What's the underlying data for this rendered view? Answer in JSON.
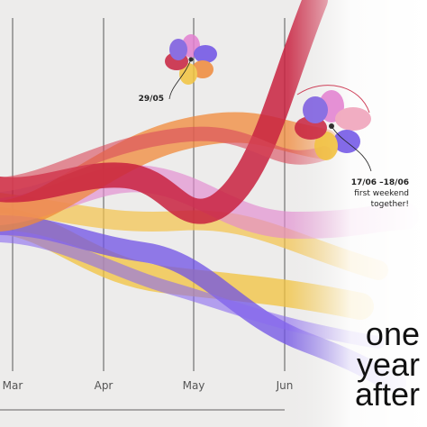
{
  "axis": {
    "months": [
      "Mar",
      "Apr",
      "May",
      "Jun"
    ]
  },
  "annotations": [
    {
      "date": "29/05"
    },
    {
      "date": "17/06 –18/06",
      "lines": [
        "first weekend",
        "together!"
      ]
    }
  ],
  "title": [
    "one",
    "year",
    "after"
  ]
}
